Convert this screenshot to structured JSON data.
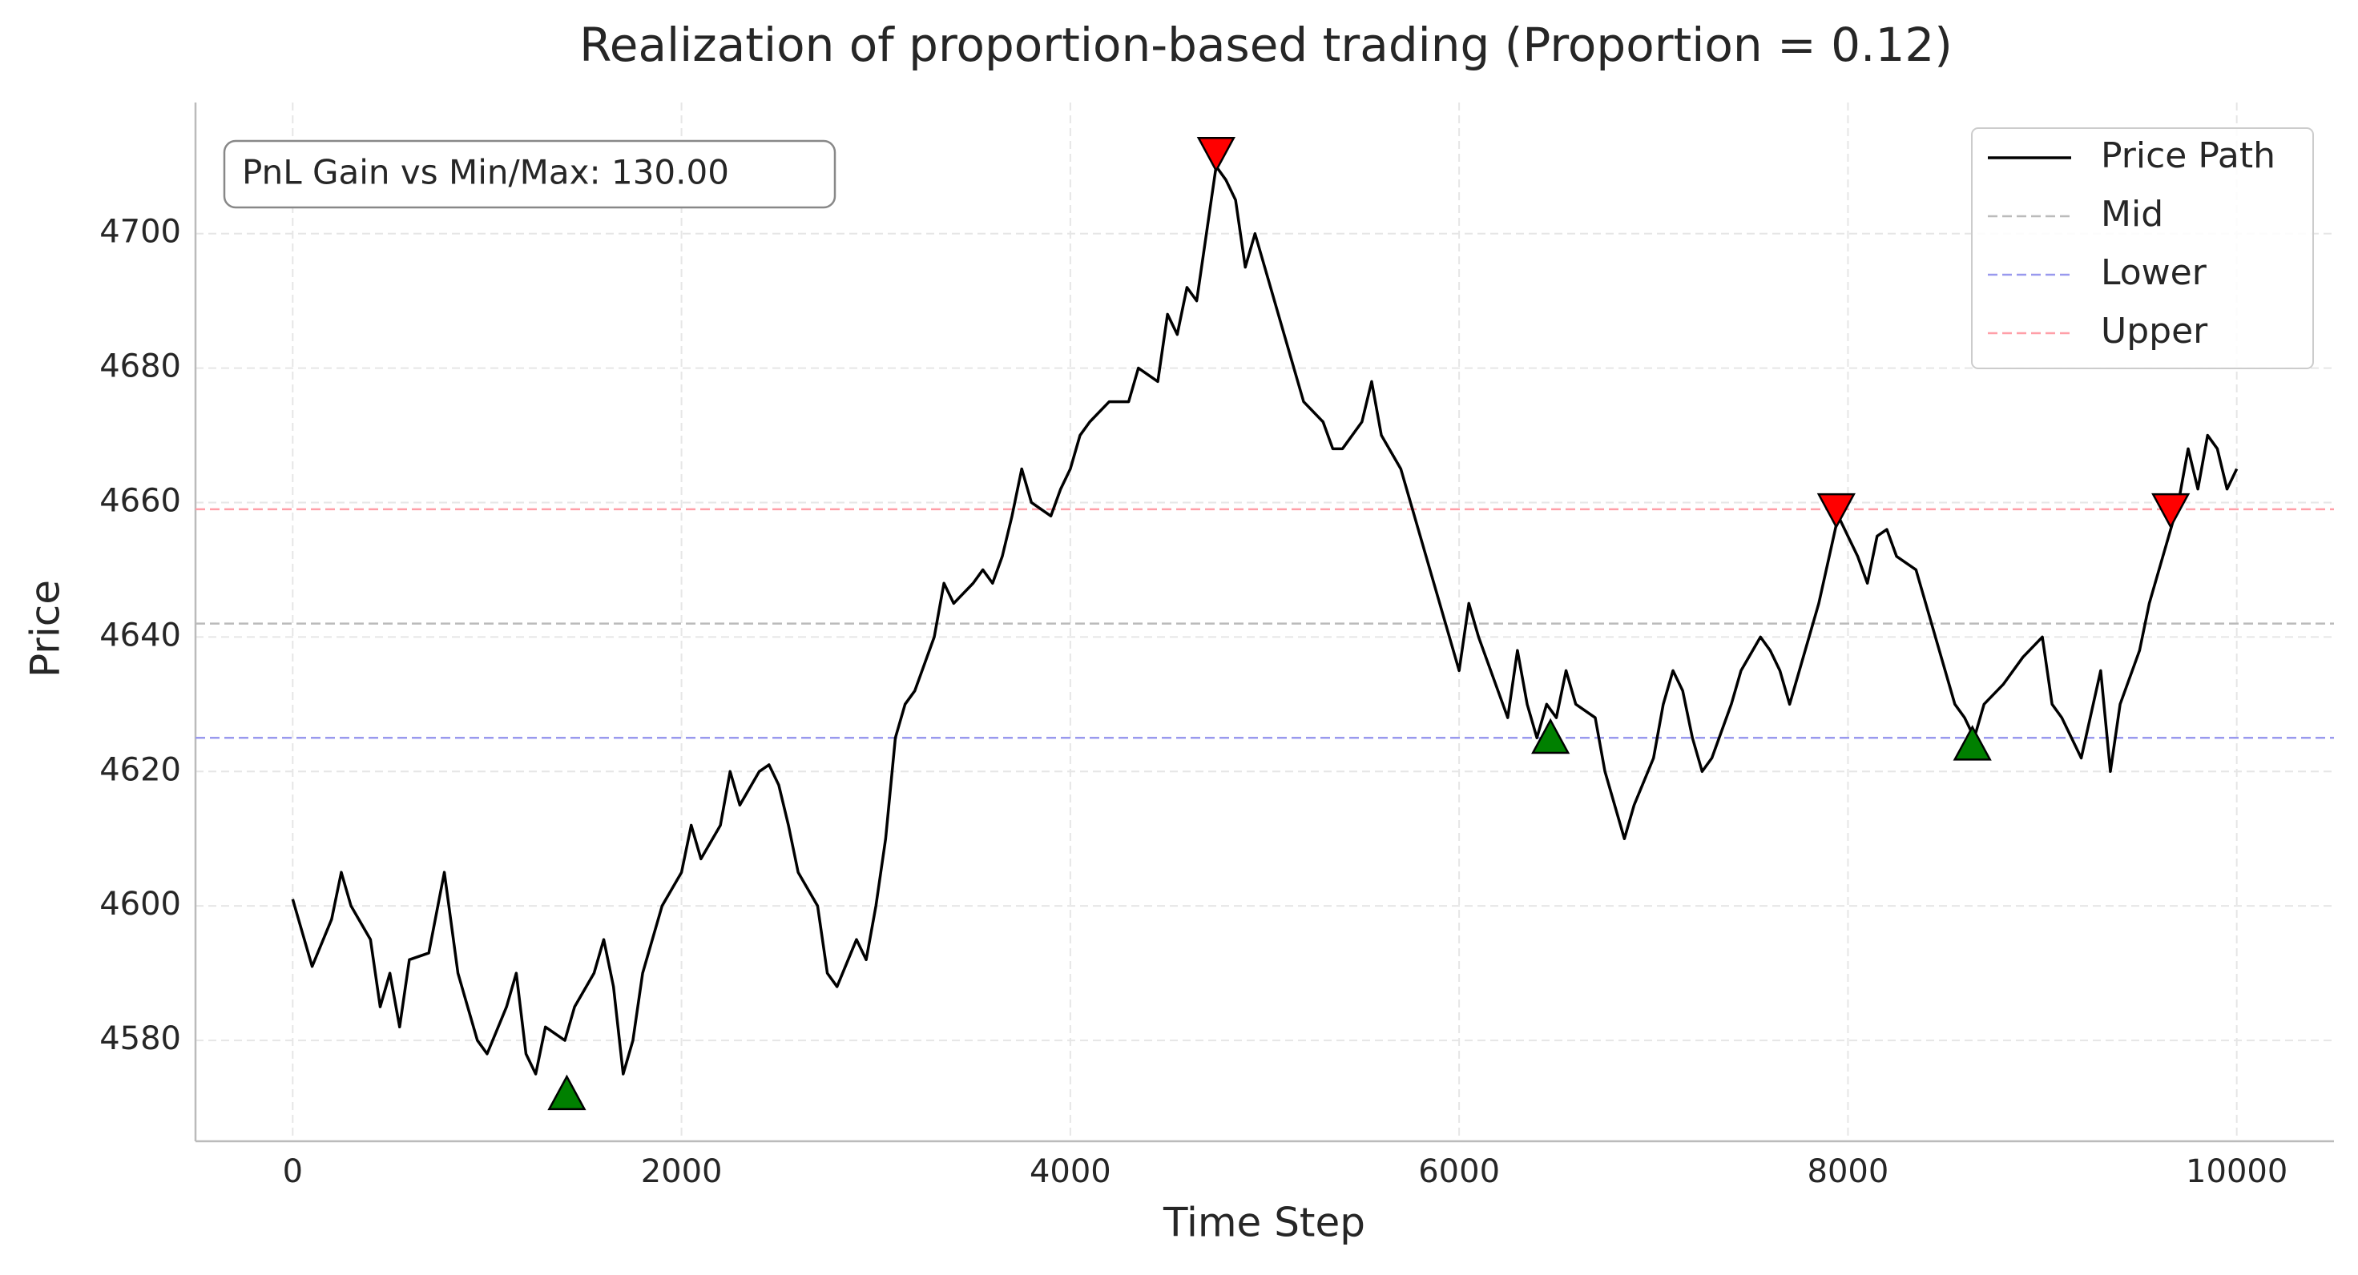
{
  "chart_data": {
    "type": "line",
    "title": "Realization of proportion-based trading (Proportion = 0.12)",
    "xlabel": "Time Step",
    "ylabel": "Price",
    "annotation": "PnL Gain vs Min/Max: 130.00",
    "xlim": [
      -500,
      10500
    ],
    "ylim": [
      4565,
      4719.5
    ],
    "xticks": [
      0,
      2000,
      4000,
      6000,
      8000,
      10000
    ],
    "yticks": [
      4580,
      4600,
      4620,
      4640,
      4660,
      4680,
      4700
    ],
    "grid": true,
    "legend": "upper right",
    "x": [
      0,
      100,
      200,
      250,
      300,
      400,
      450,
      500,
      550,
      600,
      700,
      780,
      850,
      900,
      950,
      1000,
      1100,
      1150,
      1200,
      1250,
      1300,
      1400,
      1450,
      1550,
      1600,
      1650,
      1700,
      1750,
      1800,
      1850,
      1900,
      2000,
      2050,
      2100,
      2200,
      2250,
      2300,
      2400,
      2450,
      2500,
      2550,
      2600,
      2700,
      2750,
      2800,
      2900,
      2950,
      3000,
      3050,
      3100,
      3150,
      3200,
      3300,
      3350,
      3400,
      3500,
      3550,
      3600,
      3650,
      3700,
      3750,
      3800,
      3900,
      3950,
      4000,
      4050,
      4100,
      4200,
      4300,
      4350,
      4450,
      4500,
      4550,
      4600,
      4650,
      4700,
      4750,
      4800,
      4850,
      4900,
      4950,
      5000,
      5050,
      5100,
      5150,
      5200,
      5300,
      5350,
      5400,
      5500,
      5550,
      5600,
      5700,
      5750,
      5800,
      5850,
      5900,
      5950,
      6000,
      6050,
      6100,
      6200,
      6250,
      6300,
      6350,
      6400,
      6450,
      6500,
      6550,
      6600,
      6700,
      6750,
      6800,
      6850,
      6900,
      7000,
      7050,
      7100,
      7150,
      7200,
      7250,
      7300,
      7400,
      7450,
      7550,
      7600,
      7650,
      7700,
      7800,
      7850,
      7950,
      8000,
      8050,
      8100,
      8150,
      8200,
      8250,
      8350,
      8400,
      8500,
      8550,
      8600,
      8650,
      8700,
      8800,
      8900,
      9000,
      9050,
      9100,
      9200,
      9300,
      9350,
      9400,
      9500,
      9550,
      9600,
      9650,
      9700,
      9750,
      9800,
      9850,
      9900,
      9950,
      10000
    ],
    "series": [
      {
        "name": "Price Path",
        "color": "#000000",
        "values": [
          4601,
          4591,
          4598,
          4605,
          4600,
          4595,
          4585,
          4590,
          4582,
          4592,
          4593,
          4605,
          4590,
          4585,
          4580,
          4578,
          4585,
          4590,
          4578,
          4575,
          4582,
          4580,
          4585,
          4590,
          4595,
          4588,
          4575,
          4580,
          4590,
          4595,
          4600,
          4605,
          4612,
          4607,
          4612,
          4620,
          4615,
          4620,
          4621,
          4618,
          4612,
          4605,
          4600,
          4590,
          4588,
          4595,
          4592,
          4600,
          4610,
          4625,
          4630,
          4632,
          4640,
          4648,
          4645,
          4648,
          4650,
          4648,
          4652,
          4658,
          4665,
          4660,
          4658,
          4662,
          4665,
          4670,
          4672,
          4675,
          4675,
          4680,
          4678,
          4688,
          4685,
          4692,
          4690,
          4700,
          4710,
          4708,
          4705,
          4695,
          4700,
          4695,
          4690,
          4685,
          4680,
          4675,
          4672,
          4668,
          4668,
          4672,
          4678,
          4670,
          4665,
          4660,
          4655,
          4650,
          4645,
          4640,
          4635,
          4645,
          4640,
          4632,
          4628,
          4638,
          4630,
          4625,
          4630,
          4628,
          4635,
          4630,
          4628,
          4620,
          4615,
          4610,
          4615,
          4622,
          4630,
          4635,
          4632,
          4625,
          4620,
          4622,
          4630,
          4635,
          4640,
          4638,
          4635,
          4630,
          4640,
          4645,
          4658,
          4655,
          4652,
          4648,
          4655,
          4656,
          4652,
          4650,
          4645,
          4635,
          4630,
          4628,
          4625,
          4630,
          4633,
          4637,
          4640,
          4630,
          4628,
          4622,
          4635,
          4620,
          4630,
          4638,
          4645,
          4650,
          4655,
          4660,
          4668,
          4662,
          4670,
          4668,
          4662,
          4665
        ]
      }
    ],
    "reference_lines": [
      {
        "name": "Mid",
        "value": 4642,
        "color": "#bbbbbb"
      },
      {
        "name": "Lower",
        "value": 4625,
        "color": "#9999ee"
      },
      {
        "name": "Upper",
        "value": 4659,
        "color": "#ff9fa8"
      }
    ],
    "buy_points": {
      "color": "#008000",
      "x": [
        1410,
        6470,
        8640
      ],
      "values": [
        4572,
        4625,
        4624
      ]
    },
    "sell_points": {
      "color": "#ff0000",
      "x": [
        4750,
        7940,
        9660
      ],
      "values": [
        4712,
        4659,
        4659
      ]
    }
  }
}
